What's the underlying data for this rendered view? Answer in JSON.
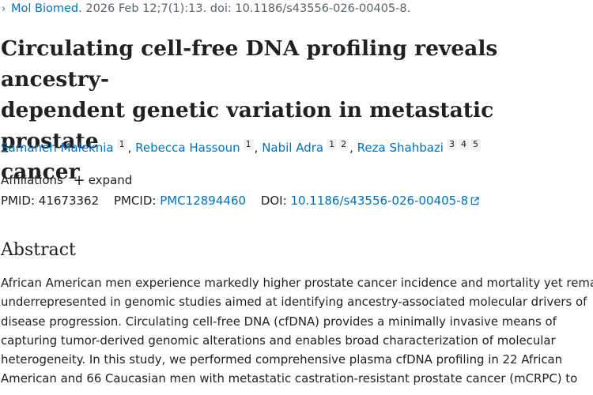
{
  "citation": {
    "chevron": "›",
    "journal": "Mol Biomed.",
    "details": " 2026 Feb 12;7(1):13. doi: 10.1186/s43556-026-00405-8."
  },
  "title": {
    "line1": "Circulating cell-free DNA profiling reveals ancestry-",
    "line2": "dependent genetic variation in metastatic prostate",
    "line3": "cancer"
  },
  "authors": [
    {
      "name": "Samaneh Maleknia",
      "affiliations": [
        "1"
      ]
    },
    {
      "name": "Rebecca Hassoun",
      "affiliations": [
        "1"
      ]
    },
    {
      "name": "Nabil Adra",
      "affiliations": [
        "1",
        "2"
      ]
    },
    {
      "name": "Reza Shahbazi",
      "affiliations": [
        "3",
        "4",
        "5"
      ]
    }
  ],
  "author_separator": ", ",
  "affiliations": {
    "label": "Affiliations",
    "expand_label": "expand",
    "expand_symbol": "+"
  },
  "identifiers": {
    "pmid_label": "PMID:",
    "pmid": "41673362",
    "pmcid_label": "PMCID:",
    "pmcid": "PMC12894460",
    "doi_label": "DOI:",
    "doi": "10.1186/s43556-026-00405-8"
  },
  "abstract": {
    "heading": "Abstract",
    "lines": [
      "African American men experience markedly higher prostate cancer incidence and mortality yet remain",
      "underrepresented in genomic studies aimed at identifying ancestry-associated molecular drivers of",
      "disease progression. Circulating cell-free DNA (cfDNA) provides a minimally invasive means of",
      "capturing tumor-derived genomic alterations and enables broad characterization of molecular",
      "heterogeneity. In this study, we performed comprehensive plasma cfDNA profiling in 22 African",
      "American and 66 Caucasian men with metastatic castration-resistant prostate cancer (mCRPC) to"
    ]
  },
  "colors": {
    "link": "#0071bc",
    "text": "#212121",
    "muted": "#5b616b",
    "badge_bg": "#f1f1f1"
  },
  "icons": {
    "citation_chevron": "chevron-right-icon",
    "expand": "plus-icon",
    "doi_external": "external-link-icon"
  }
}
